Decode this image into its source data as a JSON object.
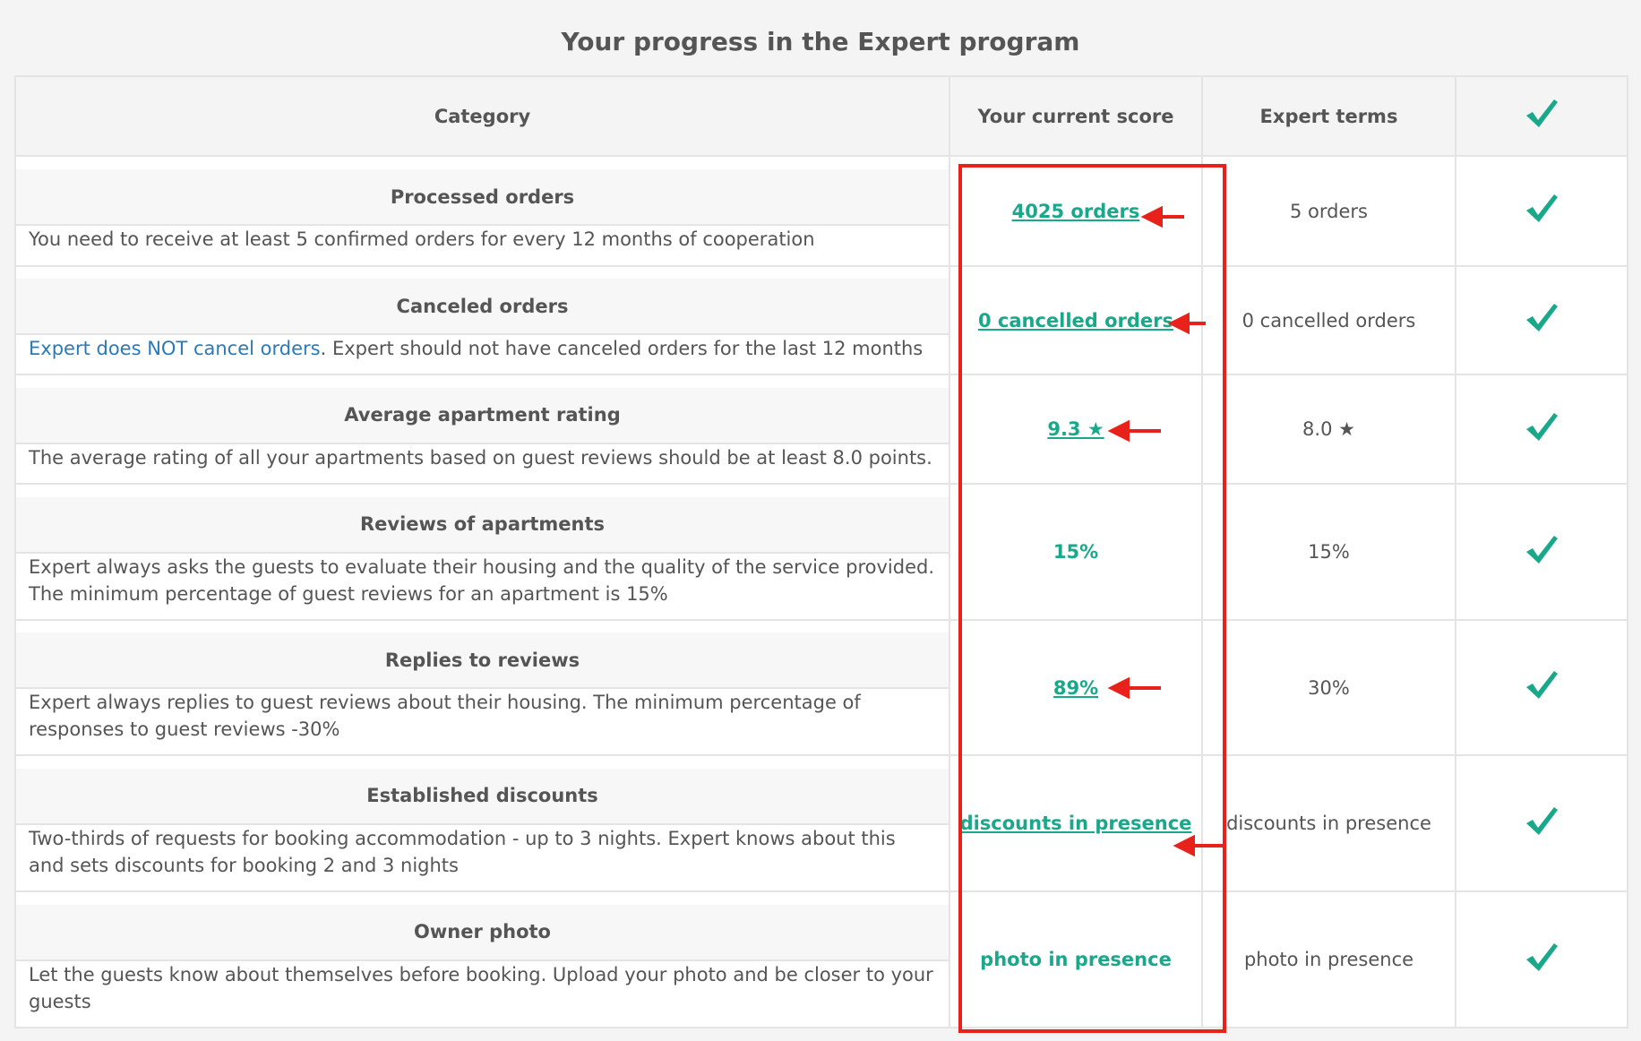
{
  "header": {
    "title": "Your progress in the Expert program"
  },
  "table": {
    "columns": [
      "Category",
      "Your current score",
      "Expert terms"
    ],
    "rows": [
      {
        "category": "Processed orders",
        "description": "You need to receive at least 5 confirmed orders for every 12 months of cooperation",
        "score": "4025 orders",
        "terms": "5 orders"
      },
      {
        "category": "Canceled orders",
        "description_link": "Expert does NOT cancel orders",
        "description": ". Expert should not have canceled orders for the last 12 months",
        "score": "0 cancelled orders",
        "terms": "0 cancelled orders"
      },
      {
        "category": "Average apartment rating",
        "description": "The average rating of all your apartments based on guest reviews should be at least 8.0 points.",
        "score": "9.3 ★",
        "terms": "8.0 ★"
      },
      {
        "category": "Reviews of apartments",
        "description": "Expert always asks the guests to evaluate their housing and the quality of the service provided. The minimum percentage of guest reviews for an apartment is 15%",
        "score": "15%",
        "terms": "15%"
      },
      {
        "category": "Replies to reviews",
        "description": "Expert always replies to guest reviews about their housing. The minimum percentage of responses to guest reviews -30%",
        "score": "89%",
        "terms": "30%"
      },
      {
        "category": "Established discounts",
        "description": "Two-thirds of requests for booking accommodation - up to 3 nights. Expert knows about this and sets discounts for booking 2 and 3 nights",
        "score": "discounts in presence",
        "terms": "discounts in presence"
      },
      {
        "category": "Owner photo",
        "description": "Let the guests know about themselves before booking. Upload your photo and be closer to your guests",
        "score": "photo in presence",
        "terms": "photo in presence"
      }
    ]
  }
}
